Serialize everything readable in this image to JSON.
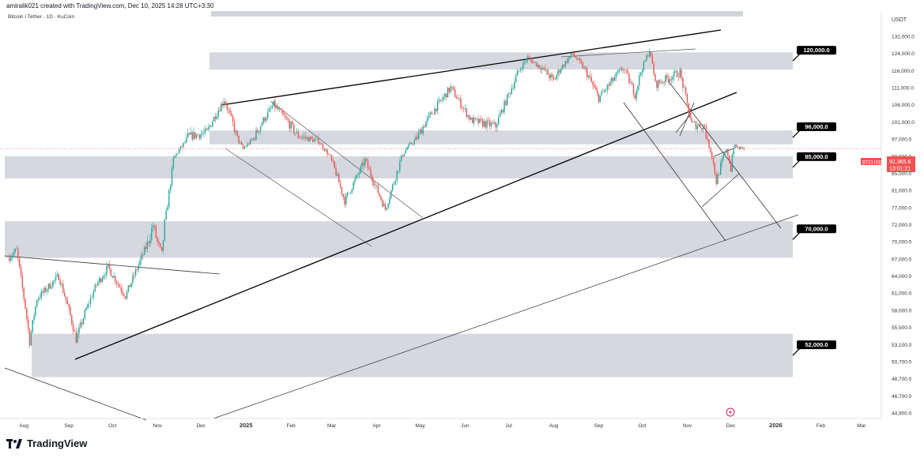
{
  "header": {
    "credit": "amiralik021 created with TradingView.com, Dec 10, 2025 14:28 UTC+3:30",
    "symbol_title": "Bitcoin / Tether · 1D · KuCoin"
  },
  "footer": {
    "brand": "TradingView"
  },
  "colors": {
    "up": "#26a69a",
    "down": "#ef5350",
    "zone": "#d1d4dc",
    "axis_text": "#333333",
    "price_badge": "#ef5350"
  },
  "chart_data": {
    "type": "candlestick",
    "symbol": "BTCUSDT",
    "currency": "USDT",
    "last_price_label": "92,365.6",
    "countdown_label": "13:01:21",
    "x_ticks": [
      "Aug",
      "Sep",
      "Oct",
      "Nov",
      "Dec",
      "2025",
      "Feb",
      "Mar",
      "Apr",
      "May",
      "Jun",
      "Jul",
      "Aug",
      "Sep",
      "Oct",
      "Nov",
      "Dec",
      "2026",
      "Feb",
      "Mar"
    ],
    "y_ticks": [
      "132,000.0",
      "124,000.0",
      "116,000.0",
      "111,000.0",
      "106,000.0",
      "101,000.0",
      "97,000.0",
      "89,000.0",
      "85,000.0",
      "81,000.0",
      "77,000.0",
      "72,000.0",
      "70,000.0",
      "67,000.0",
      "64,000.0",
      "61,000.0",
      "58,000.0",
      "55,500.0",
      "53,100.0",
      "50,700.0",
      "48,700.0",
      "46,700.0",
      "44,900.0"
    ],
    "zones": [
      {
        "label": "120,000.0",
        "low": 116500,
        "high": 124500
      },
      {
        "label": "96,000.0",
        "low": 94500,
        "high": 99000
      },
      {
        "label": "85,000.0",
        "low": 83800,
        "high": 89000
      },
      {
        "label": "70,000.0",
        "low": 67200,
        "high": 73000
      },
      {
        "label": "52,000.0",
        "low": 48900,
        "high": 54600
      }
    ],
    "price_path": [
      [
        "2024-07-20",
        67000
      ],
      [
        "2024-07-27",
        68500
      ],
      [
        "2024-08-05",
        53500
      ],
      [
        "2024-08-10",
        60000
      ],
      [
        "2024-08-25",
        64000
      ],
      [
        "2024-09-06",
        53800
      ],
      [
        "2024-09-20",
        62500
      ],
      [
        "2024-09-28",
        65500
      ],
      [
        "2024-10-10",
        60500
      ],
      [
        "2024-10-29",
        72000
      ],
      [
        "2024-11-04",
        67800
      ],
      [
        "2024-11-12",
        88000
      ],
      [
        "2024-11-22",
        97500
      ],
      [
        "2024-12-05",
        98500
      ],
      [
        "2024-12-17",
        107500
      ],
      [
        "2024-12-30",
        92500
      ],
      [
        "2025-01-20",
        106000
      ],
      [
        "2025-02-05",
        98000
      ],
      [
        "2025-02-20",
        96000
      ],
      [
        "2025-03-04",
        85000
      ],
      [
        "2025-03-10",
        78500
      ],
      [
        "2025-03-24",
        88000
      ],
      [
        "2025-04-07",
        76500
      ],
      [
        "2025-04-22",
        93000
      ],
      [
        "2025-05-08",
        103000
      ],
      [
        "2025-05-22",
        111000
      ],
      [
        "2025-06-05",
        101500
      ],
      [
        "2025-06-22",
        100000
      ],
      [
        "2025-07-14",
        122000
      ],
      [
        "2025-08-01",
        113000
      ],
      [
        "2025-08-14",
        124000
      ],
      [
        "2025-09-01",
        108000
      ],
      [
        "2025-09-18",
        117000
      ],
      [
        "2025-09-26",
        109000
      ],
      [
        "2025-10-06",
        125500
      ],
      [
        "2025-10-10",
        112000
      ],
      [
        "2025-10-27",
        115500
      ],
      [
        "2025-11-04",
        100500
      ],
      [
        "2025-11-13",
        100000
      ],
      [
        "2025-11-21",
        83000
      ],
      [
        "2025-11-28",
        91500
      ],
      [
        "2025-12-01",
        86000
      ],
      [
        "2025-12-03",
        93500
      ],
      [
        "2025-12-10",
        92365.6
      ]
    ]
  }
}
